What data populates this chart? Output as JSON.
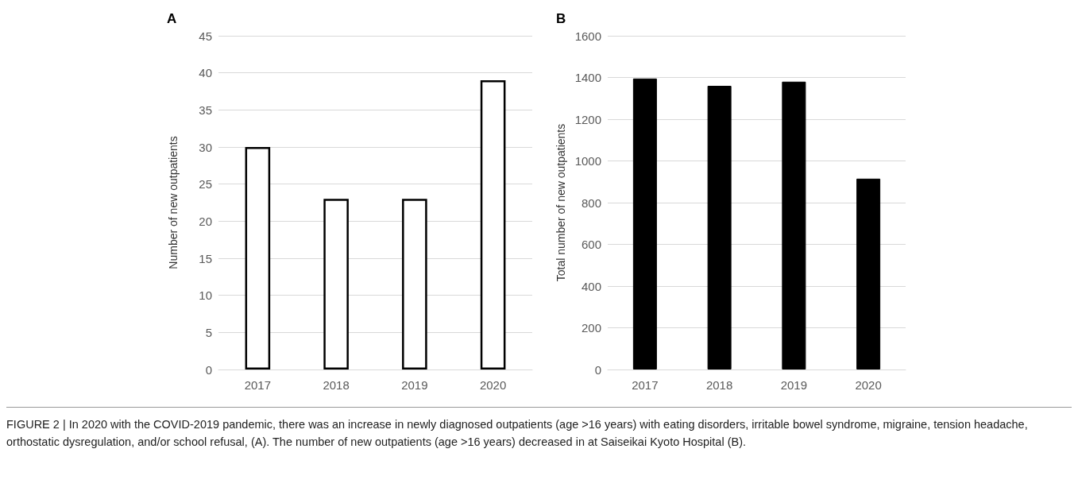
{
  "chart_data": [
    {
      "type": "bar",
      "title": "A",
      "categories": [
        "2017",
        "2018",
        "2019",
        "2020"
      ],
      "values": [
        30,
        23,
        23,
        39
      ],
      "color": "#ffffff",
      "ylabel": "Number of new outpatients",
      "ylim": [
        0,
        45
      ],
      "yticks": [
        0,
        5,
        10,
        15,
        20,
        25,
        30,
        35,
        40,
        45
      ],
      "grid": "y",
      "annotations": [
        "FIGURE 2 | In 2020 with the COVID-2019 pandemic, there was an increase in newly diagnosed outpatients (age >16 years) with eating disorders, irritable bowel syndrome, migraine, tension headache, orthostatic dysregulation, and/or school refusal, (A). The number of new outpatients (age >16 years) decreased in at Saiseikai Kyoto Hospital (B)."
      ]
    },
    {
      "type": "bar",
      "title": "B",
      "categories": [
        "2017",
        "2018",
        "2019",
        "2020"
      ],
      "values": [
        1395,
        1360,
        1380,
        915
      ],
      "color": "#000000",
      "ylabel": "Total number of new outpatients",
      "ylim": [
        0,
        1600
      ],
      "yticks": [
        0,
        200,
        400,
        600,
        800,
        1000,
        1200,
        1400,
        1600
      ],
      "grid": "y"
    }
  ]
}
